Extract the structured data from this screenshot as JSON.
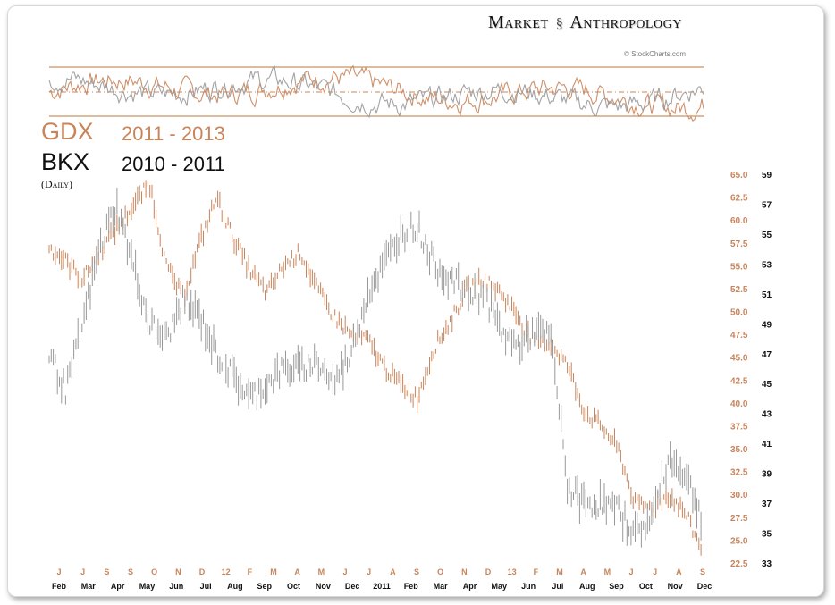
{
  "brand": {
    "market": "Market",
    "anthropology": "Anthropology",
    "dna_icon": "dna-helix-icon"
  },
  "credit": "© StockCharts.com",
  "legend": {
    "gdx": {
      "name": "GDX",
      "range": "2011 - 2013",
      "color": "#c9845a"
    },
    "bkx": {
      "name": "BKX",
      "range": "2010 - 2011",
      "color": "#111111"
    },
    "frequency": "(Daily)"
  },
  "chart_data": [
    {
      "type": "line",
      "title": "",
      "note": "oscillator strip, no printed values",
      "series": [
        {
          "name": "GDX",
          "color": "#c9845a"
        },
        {
          "name": "BKX",
          "color": "#999999"
        }
      ]
    },
    {
      "type": "bar",
      "title": "",
      "series": [
        {
          "name": "GDX",
          "color": "#c9845a",
          "axis": "left",
          "values": [
            57.0,
            55.5,
            53.5,
            56.5,
            59.0,
            61.5,
            64.0,
            55.0,
            51.5,
            57.5,
            62.5,
            58.0,
            54.5,
            52.0,
            55.0,
            56.5,
            52.5,
            49.5,
            47.5,
            47.0,
            44.0,
            42.0,
            40.5,
            46.0,
            49.0,
            52.5,
            53.5,
            52.0,
            49.5,
            46.5,
            46.5,
            44.0,
            39.0,
            37.5,
            35.0,
            29.0,
            28.5,
            30.0,
            28.0,
            24.0
          ]
        },
        {
          "name": "BKX",
          "color": "#999999",
          "axis": "right",
          "values": [
            47.0,
            44.5,
            49.0,
            54.0,
            57.0,
            53.0,
            49.0,
            48.0,
            50.5,
            49.5,
            47.0,
            45.5,
            44.0,
            45.0,
            46.0,
            46.0,
            46.5,
            45.0,
            47.0,
            51.0,
            53.0,
            55.0,
            55.5,
            53.0,
            52.0,
            51.0,
            51.0,
            48.5,
            47.5,
            48.5,
            48.0,
            38.0,
            37.0,
            37.0,
            36.5,
            35.0,
            36.0,
            40.0,
            39.0,
            36.0
          ]
        }
      ],
      "left_axis": {
        "ticks": [
          "65.0",
          "62.5",
          "60.0",
          "57.5",
          "55.0",
          "52.5",
          "50.0",
          "47.5",
          "45.0",
          "42.5",
          "40.0",
          "37.5",
          "35.0",
          "32.5",
          "30.0",
          "27.5",
          "25.0",
          "22.5"
        ],
        "ylim": [
          22.5,
          65.0
        ],
        "color": "#c9845a"
      },
      "right_axis": {
        "ticks": [
          "59",
          "57",
          "55",
          "53",
          "51",
          "49",
          "47",
          "45",
          "43",
          "41",
          "39",
          "37",
          "35",
          "33"
        ],
        "ylim": [
          33,
          59
        ],
        "color": "#111111"
      },
      "x_axis_top": {
        "labels": [
          "J",
          "J",
          "S",
          "S",
          "O",
          "N",
          "D",
          "12",
          "F",
          "M",
          "A",
          "M",
          "J",
          "J",
          "A",
          "S",
          "O",
          "N",
          "D",
          "13",
          "F",
          "M",
          "A",
          "M",
          "J",
          "J",
          "A",
          "S"
        ],
        "color": "#c9845a"
      },
      "x_axis_bottom": {
        "labels": [
          "Feb",
          "Mar",
          "Apr",
          "May",
          "Jun",
          "Jul",
          "Aug",
          "Sep",
          "Oct",
          "Nov",
          "Dec",
          "2011",
          "Feb",
          "Mar",
          "Apr",
          "May",
          "Jun",
          "Jul",
          "Aug",
          "Sep",
          "Oct",
          "Nov",
          "Dec"
        ],
        "color": "#111111"
      }
    }
  ]
}
